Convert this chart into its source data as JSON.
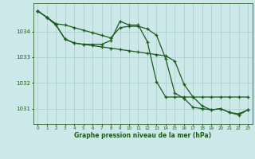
{
  "xlabel": "Graphe pression niveau de la mer (hPa)",
  "background_color": "#cce8e8",
  "grid_color": "#a8cccc",
  "line_color": "#1a5c1a",
  "xlim": [
    -0.5,
    23.5
  ],
  "ylim": [
    1030.4,
    1035.1
  ],
  "yticks": [
    1031,
    1032,
    1033,
    1034
  ],
  "xticks": [
    0,
    1,
    2,
    3,
    4,
    5,
    6,
    7,
    8,
    9,
    10,
    11,
    12,
    13,
    14,
    15,
    16,
    17,
    18,
    19,
    20,
    21,
    22,
    23
  ],
  "series1": [
    1034.8,
    1034.55,
    1034.3,
    1034.25,
    1034.15,
    1034.05,
    1033.95,
    1033.85,
    1033.75,
    1034.15,
    1034.2,
    1034.2,
    1034.1,
    1033.85,
    1032.95,
    1031.6,
    1031.4,
    1031.05,
    1031.0,
    1030.95,
    1031.0,
    1030.85,
    1030.8,
    1030.95
  ],
  "series2": [
    1034.8,
    1034.55,
    1034.25,
    1033.7,
    1033.55,
    1033.5,
    1033.5,
    1033.5,
    1033.65,
    1034.4,
    1034.25,
    1034.25,
    1033.6,
    1032.05,
    1031.45,
    1031.45,
    1031.45,
    1031.45,
    1031.45,
    1031.45,
    1031.45,
    1031.45,
    1031.45,
    1031.45
  ],
  "series3": [
    1034.8,
    1034.55,
    1034.25,
    1033.7,
    1033.55,
    1033.5,
    1033.45,
    1033.4,
    1033.35,
    1033.3,
    1033.25,
    1033.2,
    1033.15,
    1033.1,
    1033.05,
    1032.85,
    1031.95,
    1031.45,
    1031.1,
    1030.95,
    1031.0,
    1030.85,
    1030.75,
    1030.95
  ]
}
